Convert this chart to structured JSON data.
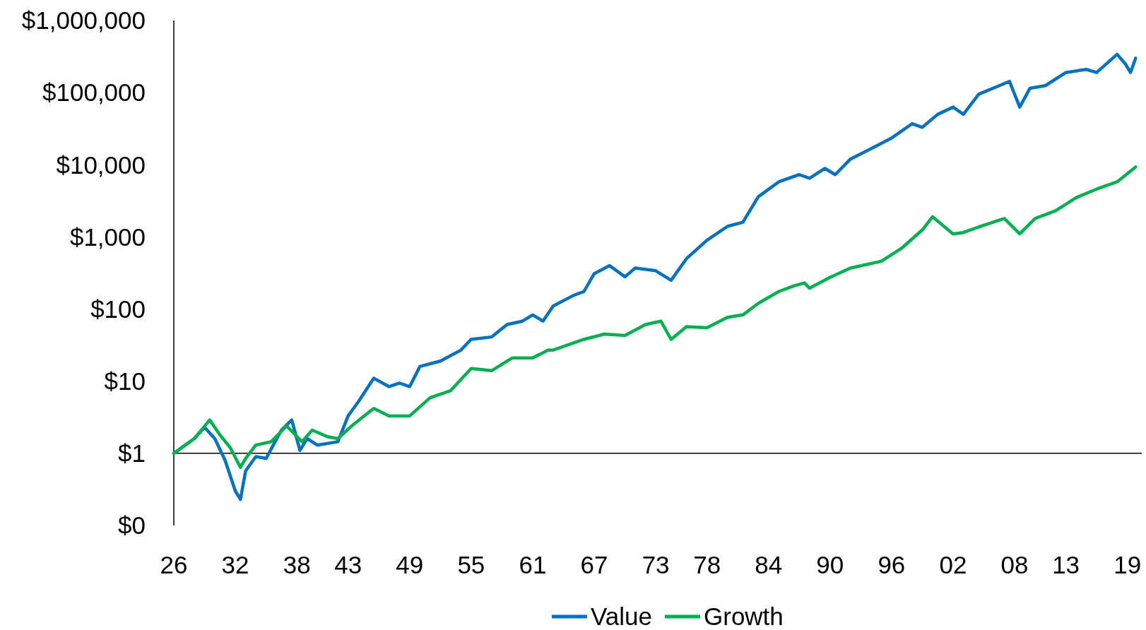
{
  "chart_data": {
    "type": "line",
    "log": "y",
    "legend": "bottom",
    "grid": false,
    "line_style": "solid",
    "ref_lines": [
      {
        "axis": "y",
        "value": 1,
        "color": "#000000"
      }
    ],
    "xlim": [
      1926,
      2020.4
    ],
    "xticks": [
      {
        "value": 1926,
        "label": "26"
      },
      {
        "value": 1932,
        "label": "32"
      },
      {
        "value": 1938,
        "label": "38"
      },
      {
        "value": 1943,
        "label": "43"
      },
      {
        "value": 1949,
        "label": "49"
      },
      {
        "value": 1955,
        "label": "55"
      },
      {
        "value": 1961,
        "label": "61"
      },
      {
        "value": 1967,
        "label": "67"
      },
      {
        "value": 1973,
        "label": "73"
      },
      {
        "value": 1978,
        "label": "78"
      },
      {
        "value": 1984,
        "label": "84"
      },
      {
        "value": 1990,
        "label": "90"
      },
      {
        "value": 1996,
        "label": "96"
      },
      {
        "value": 2002,
        "label": "02"
      },
      {
        "value": 2008,
        "label": "08"
      },
      {
        "value": 2013,
        "label": "13"
      },
      {
        "value": 2019,
        "label": "19"
      }
    ],
    "ylim": [
      0.1,
      1000000
    ],
    "yticks": [
      {
        "value": 0.1,
        "label": "$0"
      },
      {
        "value": 1,
        "label": "$1"
      },
      {
        "value": 10,
        "label": "$10"
      },
      {
        "value": 100,
        "label": "$100"
      },
      {
        "value": 1000,
        "label": "$1,000"
      },
      {
        "value": 10000,
        "label": "$10,000"
      },
      {
        "value": 100000,
        "label": "$100,000"
      },
      {
        "value": 1000000,
        "label": "$1,000,000"
      }
    ],
    "series": [
      {
        "name": "Value",
        "color": "#0070c0",
        "x": [
          1926,
          1928,
          1929,
          1930,
          1931,
          1932,
          1932.5,
          1933,
          1934,
          1935,
          1936.5,
          1937.5,
          1938.3,
          1939,
          1940,
          1942,
          1943,
          1944,
          1945.5,
          1947,
          1948,
          1949,
          1950,
          1952,
          1954,
          1955,
          1957,
          1958.5,
          1960,
          1961,
          1962,
          1963,
          1965,
          1966,
          1967,
          1968.5,
          1970,
          1971,
          1973,
          1974.5,
          1976,
          1978,
          1980,
          1981.5,
          1983,
          1985,
          1987,
          1988,
          1989.5,
          1990.5,
          1992,
          1994,
          1996,
          1998,
          1999,
          2000.5,
          2002,
          2003,
          2004.5,
          2007.5,
          2008.5,
          2009.5,
          2011,
          2013,
          2015,
          2016,
          2018,
          2018.8,
          2019.3,
          2019.8
        ],
        "values": [
          1,
          1.6,
          2.3,
          1.6,
          0.8,
          0.3,
          0.23,
          0.57,
          0.9,
          0.85,
          2.1,
          2.9,
          1.1,
          1.6,
          1.3,
          1.45,
          3.3,
          5.2,
          11,
          8.4,
          9.4,
          8.4,
          16,
          19,
          27,
          38,
          41,
          61,
          68,
          83,
          68,
          110,
          155,
          175,
          310,
          400,
          280,
          370,
          340,
          250,
          500,
          900,
          1400,
          1600,
          3600,
          5800,
          7300,
          6500,
          8900,
          7300,
          12000,
          16700,
          23500,
          37000,
          33000,
          50000,
          63000,
          50000,
          95000,
          143000,
          63000,
          115000,
          125000,
          190000,
          210000,
          190000,
          340000,
          250000,
          190000,
          300000
        ]
      },
      {
        "name": "Growth",
        "color": "#00b050",
        "x": [
          1926,
          1928,
          1929.5,
          1930.5,
          1931.5,
          1932.5,
          1933,
          1934,
          1935.5,
          1937,
          1938.5,
          1939.5,
          1941,
          1942,
          1943.5,
          1945.5,
          1947,
          1949,
          1951,
          1953,
          1955,
          1957,
          1959,
          1961,
          1962.5,
          1963,
          1966,
          1968,
          1970,
          1972,
          1973.5,
          1974.5,
          1976,
          1978,
          1980,
          1981.5,
          1983,
          1985,
          1986.5,
          1987.5,
          1988,
          1990,
          1992,
          1995,
          1997,
          1999,
          2000,
          2002,
          2003,
          2005,
          2007,
          2008.5,
          2010,
          2012,
          2014,
          2016,
          2018,
          2019.8
        ],
        "values": [
          1,
          1.6,
          2.9,
          1.8,
          1.2,
          0.64,
          0.85,
          1.3,
          1.45,
          2.4,
          1.45,
          2.1,
          1.7,
          1.6,
          2.5,
          4.2,
          3.3,
          3.3,
          5.9,
          7.4,
          15,
          14,
          21,
          21,
          27,
          27,
          38,
          45,
          43,
          61,
          68,
          38,
          57,
          55,
          77,
          83,
          120,
          175,
          210,
          230,
          195,
          275,
          370,
          460,
          700,
          1250,
          1900,
          1100,
          1150,
          1450,
          1800,
          1100,
          1800,
          2300,
          3500,
          4600,
          5800,
          9300
        ]
      }
    ]
  }
}
